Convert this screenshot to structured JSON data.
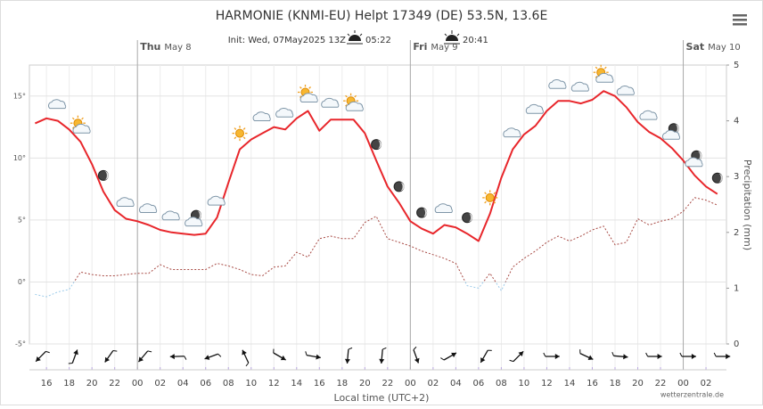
{
  "chart_data": {
    "type": "line",
    "title": "HARMONIE (KNMI-EU) Helpt 17349 (DE) 53.5N, 13.6E",
    "subtitle": "Init: Wed, 07May2025 13Z",
    "sunrise": "05:22",
    "sunset": "20:41",
    "x_label": "Local time (UTC+2)",
    "y2_label": "Precipitation (mm)",
    "credit": "wetterzentrale.de",
    "days": [
      {
        "value": 24,
        "weekday": "Thu",
        "date": "May 8"
      },
      {
        "value": 48,
        "weekday": "Fri",
        "date": "May 9"
      },
      {
        "value": 72,
        "weekday": "Sat",
        "date": "May 10"
      }
    ],
    "x": [
      15,
      16,
      17,
      18,
      19,
      20,
      21,
      22,
      23,
      24,
      25,
      26,
      27,
      28,
      29,
      30,
      31,
      32,
      33,
      34,
      35,
      36,
      37,
      38,
      39,
      40,
      41,
      42,
      43,
      44,
      45,
      46,
      47,
      48,
      49,
      50,
      51,
      52,
      53,
      54,
      55,
      56,
      57,
      58,
      59,
      60,
      61,
      62,
      63,
      64,
      65,
      66,
      67,
      68,
      69,
      70,
      71,
      72,
      73,
      74,
      75
    ],
    "series": [
      {
        "color": "#e8262b",
        "values": [
          12.8,
          13.2,
          13.0,
          12.3,
          11.3,
          9.5,
          7.3,
          5.8,
          5.1,
          4.9,
          4.6,
          4.2,
          4.0,
          3.9,
          3.8,
          3.9,
          5.2,
          8.0,
          10.7,
          11.5,
          12.0,
          12.5,
          12.3,
          13.2,
          13.8,
          12.2,
          13.1,
          13.1,
          13.1,
          12.0,
          9.8,
          7.7,
          6.4,
          4.9,
          4.3,
          3.9,
          4.6,
          4.4,
          3.9,
          3.3,
          5.5,
          8.4,
          10.7,
          11.9,
          12.6,
          13.8,
          14.6,
          14.6,
          14.4,
          14.7,
          15.4,
          15.0,
          14.1,
          12.9,
          12.1,
          11.6,
          10.8,
          9.8,
          8.6,
          7.7,
          7.1
        ]
      },
      {
        "color": "#a84a44",
        "negative_color": "#9ccbea",
        "dashed": true,
        "values": [
          -1.0,
          -1.2,
          -0.8,
          -0.6,
          0.8,
          0.6,
          0.5,
          0.5,
          0.6,
          0.7,
          0.7,
          1.4,
          1.0,
          1.0,
          1.0,
          1.0,
          1.5,
          1.3,
          1.0,
          0.6,
          0.5,
          1.2,
          1.3,
          2.4,
          2.0,
          3.5,
          3.7,
          3.5,
          3.5,
          4.8,
          5.3,
          3.5,
          3.2,
          2.9,
          2.5,
          2.2,
          1.9,
          1.5,
          -0.3,
          -0.5,
          0.7,
          -0.7,
          1.2,
          1.9,
          2.5,
          3.2,
          3.7,
          3.3,
          3.7,
          4.2,
          4.5,
          3.0,
          3.2,
          5.1,
          4.6,
          4.9,
          5.1,
          5.7,
          6.8,
          6.6,
          6.2
        ]
      }
    ],
    "xlim": [
      14.5,
      75.8
    ],
    "xticks": [
      16,
      18,
      20,
      22,
      {
        "value": 24,
        "label": "00"
      },
      {
        "value": 26,
        "label": "02"
      },
      {
        "value": 28,
        "label": "04"
      },
      {
        "value": 30,
        "label": "06"
      },
      {
        "value": 32,
        "label": "08"
      },
      {
        "value": 34,
        "label": "10"
      },
      {
        "value": 36,
        "label": "12"
      },
      {
        "value": 38,
        "label": "14"
      },
      {
        "value": 40,
        "label": "16"
      },
      {
        "value": 42,
        "label": "18"
      },
      {
        "value": 44,
        "label": "20"
      },
      {
        "value": 46,
        "label": "22"
      },
      {
        "value": 48,
        "label": "00"
      },
      {
        "value": 50,
        "label": "02"
      },
      {
        "value": 52,
        "label": "04"
      },
      {
        "value": 54,
        "label": "06"
      },
      {
        "value": 56,
        "label": "08"
      },
      {
        "value": 58,
        "label": "10"
      },
      {
        "value": 60,
        "label": "12"
      },
      {
        "value": 62,
        "label": "14"
      },
      {
        "value": 64,
        "label": "16"
      },
      {
        "value": 66,
        "label": "18"
      },
      {
        "value": 68,
        "label": "20"
      },
      {
        "value": 70,
        "label": "22"
      },
      {
        "value": 72,
        "label": "00"
      },
      {
        "value": 74,
        "label": "02"
      }
    ],
    "ylim": [
      -5,
      17.5
    ],
    "yticks": [
      {
        "value": -5,
        "label": "-5°"
      },
      {
        "value": 0,
        "label": "0°"
      },
      {
        "value": 5,
        "label": "5°"
      },
      {
        "value": 10,
        "label": "10°"
      },
      {
        "value": 15,
        "label": "15°"
      }
    ],
    "y2lim": [
      0,
      5
    ],
    "y2ticks": [
      0,
      1,
      2,
      3,
      4,
      5
    ],
    "grid": true
  }
}
